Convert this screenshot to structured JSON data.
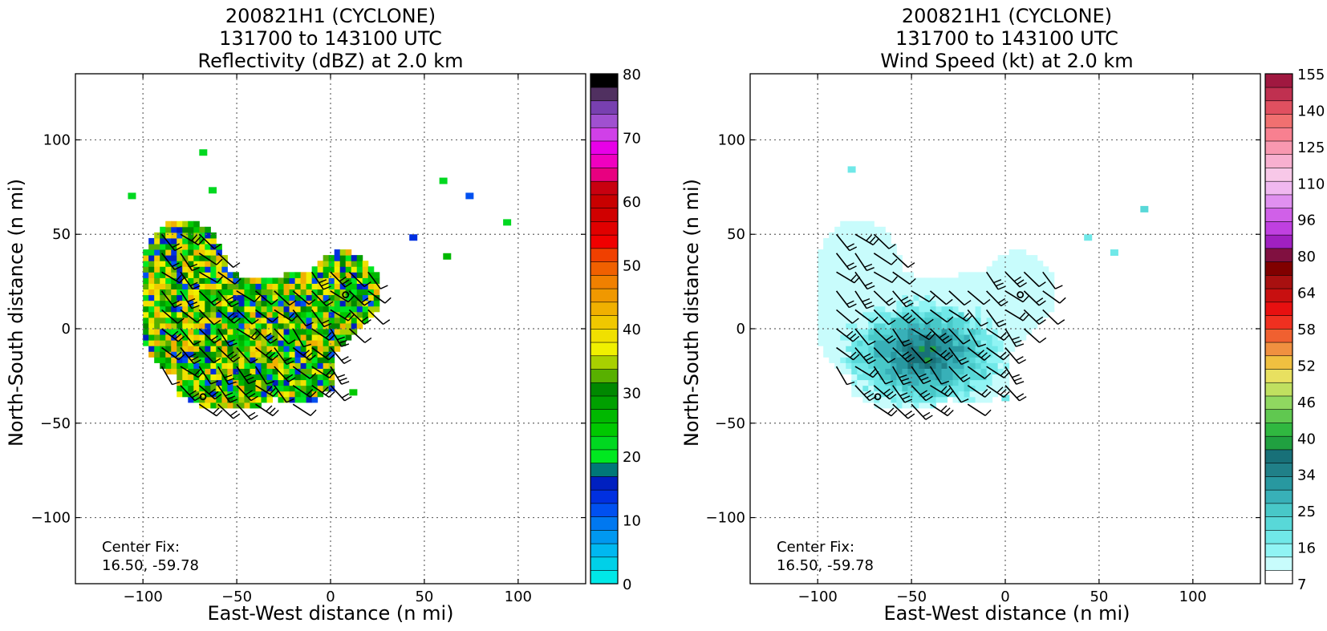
{
  "panels": [
    {
      "title_lines": [
        "200821H1 (CYCLONE)",
        "131700 to 143100 UTC",
        "Reflectivity (dBZ) at 2.0 km"
      ],
      "xlabel": "East-West distance (n mi)",
      "ylabel": "North-South distance (n mi)",
      "center_fix": [
        "Center Fix:",
        "16.50, -59.78"
      ],
      "colorbar_labels": [
        "80",
        "70",
        "60",
        "50",
        "40",
        "30",
        "20",
        "10",
        "0"
      ]
    },
    {
      "title_lines": [
        "200821H1 (CYCLONE)",
        "131700 to 143100 UTC",
        "Wind Speed (kt) at 2.0 km"
      ],
      "xlabel": "East-West distance (n mi)",
      "ylabel": "North-South distance (n mi)",
      "center_fix": [
        "Center Fix:",
        "16.50, -59.78"
      ],
      "colorbar_labels": [
        "155",
        "140",
        "125",
        "110",
        "96",
        "80",
        "64",
        "58",
        "52",
        "46",
        "40",
        "34",
        "25",
        "16",
        "7"
      ]
    }
  ],
  "chart_data": [
    {
      "type": "heatmap",
      "title": "200821H1 (CYCLONE) 131700 to 143100 UTC Reflectivity (dBZ) at 2.0 km",
      "xlabel": "East-West distance (n mi)",
      "ylabel": "North-South distance (n mi)",
      "xlim": [
        -136,
        136
      ],
      "ylim": [
        -135,
        135
      ],
      "xticks": [
        -100,
        -50,
        0,
        50,
        100
      ],
      "yticks": [
        100,
        50,
        0,
        -50,
        -100
      ],
      "xtick_labels": [
        "−100",
        "−50",
        "0",
        "50",
        "100"
      ],
      "ytick_labels": [
        "100",
        "50",
        "0",
        "−50",
        "−100"
      ],
      "grid": true,
      "colorbar": {
        "min": 0,
        "max": 80,
        "step": 2.5,
        "colors": [
          "#00e8e8",
          "#00d0e8",
          "#00b8f0",
          "#0098f0",
          "#0078f0",
          "#0050f0",
          "#0030e0",
          "#0020c0",
          "#007878",
          "#00e820",
          "#00d820",
          "#00c800",
          "#00b800",
          "#00a000",
          "#008800",
          "#58b000",
          "#a8d000",
          "#f0f000",
          "#f0e000",
          "#f0c800",
          "#f0b000",
          "#f09800",
          "#f08000",
          "#f06000",
          "#f04000",
          "#f00000",
          "#e00000",
          "#d00000",
          "#c80000",
          "#c80010",
          "#e80080",
          "#f000c0",
          "#e800e8",
          "#d040e8",
          "#a050d0",
          "#7840b0",
          "#503060",
          "#000000"
        ]
      },
      "wind_barbs": true,
      "marker_points": [
        {
          "x": 8,
          "y": 18
        },
        {
          "x": -68,
          "y": -36
        }
      ]
    },
    {
      "type": "heatmap",
      "title": "200821H1 (CYCLONE) 131700 to 143100 UTC Wind Speed (kt) at 2.0 km",
      "xlabel": "East-West distance (n mi)",
      "ylabel": "North-South distance (n mi)",
      "xlim": [
        -136,
        136
      ],
      "ylim": [
        -135,
        135
      ],
      "xticks": [
        -100,
        -50,
        0,
        50,
        100
      ],
      "yticks": [
        100,
        50,
        0,
        -50,
        -100
      ],
      "xtick_labels": [
        "−100",
        "−50",
        "0",
        "50",
        "100"
      ],
      "ytick_labels": [
        "100",
        "50",
        "0",
        "−50",
        "−100"
      ],
      "grid": true,
      "colorbar": {
        "levels_count": 37,
        "colors": [
          "#ffffff",
          "#c8fcfc",
          "#90f4f4",
          "#70e8e8",
          "#58d8d8",
          "#48c8c8",
          "#38b0b8",
          "#2898a0",
          "#208088",
          "#187078",
          "#20a040",
          "#30b840",
          "#60c850",
          "#90d860",
          "#c0e060",
          "#e8e060",
          "#f0c040",
          "#f09040",
          "#f06030",
          "#f03020",
          "#e81010",
          "#c81010",
          "#a81010",
          "#800000",
          "#801040",
          "#a020c0",
          "#c040e0",
          "#d060e8",
          "#e090f0",
          "#f0b8f0",
          "#f8c8e8",
          "#f8b0d0",
          "#f898b0",
          "#f88090",
          "#f07070",
          "#e05060",
          "#c03050",
          "#a01840"
        ]
      },
      "wind_barbs": true,
      "marker_points": [
        {
          "x": 8,
          "y": 18
        },
        {
          "x": -68,
          "y": -36
        }
      ]
    }
  ]
}
